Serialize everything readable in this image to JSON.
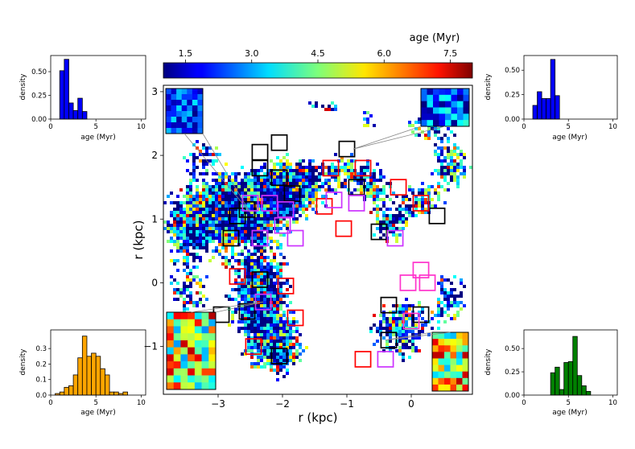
{
  "chart_data": {
    "type": "heatmap",
    "main": {
      "xlabel": "r (kpc)",
      "ylabel": "r (kpc)",
      "xlim": [
        -3.85,
        0.95
      ],
      "ylim": [
        -1.75,
        3.1
      ],
      "xticks": [
        -3,
        -2,
        -1,
        0
      ],
      "yticks": [
        -1,
        0,
        1,
        2,
        3
      ],
      "x_tick_labels": [
        "−3",
        "−2",
        "−1",
        "0"
      ],
      "y_tick_labels": [
        "−1",
        "0",
        "1",
        "2",
        "3"
      ],
      "colorbar": {
        "label": "age (Myr)",
        "range": [
          1.0,
          8.0
        ],
        "ticks": [
          1.5,
          3.0,
          4.5,
          6.0,
          7.5
        ],
        "tick_labels": [
          "1.5",
          "3.0",
          "4.5",
          "6.0",
          "7.5"
        ],
        "colormap": "jet"
      },
      "regions": [
        {
          "color": "#000000",
          "x": -2.35,
          "y": 2.05
        },
        {
          "color": "#000000",
          "x": -2.05,
          "y": 2.2
        },
        {
          "color": "#000000",
          "x": -2.35,
          "y": 1.8
        },
        {
          "color": "#000000",
          "x": -2.05,
          "y": 1.65
        },
        {
          "color": "#000000",
          "x": -1.85,
          "y": 1.4
        },
        {
          "color": "#000000",
          "x": -1.0,
          "y": 2.1
        },
        {
          "color": "#000000",
          "x": -0.85,
          "y": 1.5
        },
        {
          "color": "#000000",
          "x": 0.4,
          "y": 1.05
        },
        {
          "color": "#000000",
          "x": -2.55,
          "y": 1.15
        },
        {
          "color": "#000000",
          "x": -2.7,
          "y": 1.05
        },
        {
          "color": "#000000",
          "x": -2.8,
          "y": 0.7
        },
        {
          "color": "#000000",
          "x": -0.5,
          "y": 0.8
        },
        {
          "color": "#000000",
          "x": -2.35,
          "y": 0.05
        },
        {
          "color": "#000000",
          "x": -2.55,
          "y": -0.45
        },
        {
          "color": "#000000",
          "x": -2.95,
          "y": -0.5
        },
        {
          "color": "#000000",
          "x": -0.35,
          "y": -0.35
        },
        {
          "color": "#000000",
          "x": 0.15,
          "y": -0.5
        },
        {
          "color": "#000000",
          "x": -0.35,
          "y": -0.9
        },
        {
          "color": "#000000",
          "x": -2.05,
          "y": -1.15
        },
        {
          "color": "#ff0000",
          "x": -1.25,
          "y": 1.8
        },
        {
          "color": "#ff0000",
          "x": -0.75,
          "y": 1.8
        },
        {
          "color": "#ff0000",
          "x": -0.2,
          "y": 1.5
        },
        {
          "color": "#ff0000",
          "x": 0.15,
          "y": 1.25
        },
        {
          "color": "#ff0000",
          "x": -1.35,
          "y": 1.2
        },
        {
          "color": "#ff0000",
          "x": -1.05,
          "y": 0.85
        },
        {
          "color": "#ff0000",
          "x": -2.7,
          "y": 0.1
        },
        {
          "color": "#ff0000",
          "x": -1.95,
          "y": -0.05
        },
        {
          "color": "#ff0000",
          "x": -1.8,
          "y": -0.55
        },
        {
          "color": "#ff0000",
          "x": -2.45,
          "y": -1.0
        },
        {
          "color": "#ff0000",
          "x": -0.75,
          "y": -1.2
        },
        {
          "color": "#cc33ff",
          "x": -2.5,
          "y": 1.25
        },
        {
          "color": "#cc33ff",
          "x": -2.2,
          "y": 1.25
        },
        {
          "color": "#cc33ff",
          "x": -1.95,
          "y": 1.15
        },
        {
          "color": "#cc33ff",
          "x": -2.0,
          "y": 0.9
        },
        {
          "color": "#cc33ff",
          "x": -2.35,
          "y": 0.7
        },
        {
          "color": "#cc33ff",
          "x": -1.8,
          "y": 0.7
        },
        {
          "color": "#cc33ff",
          "x": -1.2,
          "y": 1.3
        },
        {
          "color": "#cc33ff",
          "x": -0.85,
          "y": 1.25
        },
        {
          "color": "#cc33ff",
          "x": -0.25,
          "y": 0.7
        },
        {
          "color": "#cc33ff",
          "x": -2.3,
          "y": -0.3
        },
        {
          "color": "#cc33ff",
          "x": -0.4,
          "y": -1.2
        },
        {
          "color": "#ff33cc",
          "x": 0.15,
          "y": 0.2
        },
        {
          "color": "#ff33cc",
          "x": 0.25,
          "y": 0.0
        },
        {
          "color": "#ff33cc",
          "x": -0.05,
          "y": 0.0
        },
        {
          "color": "#ff33cc",
          "x": 0.0,
          "y": -0.6
        }
      ]
    },
    "histograms": [
      {
        "position": "top-left",
        "color": "#0000ff",
        "xlabel": "age (Myr)",
        "ylabel": "density",
        "xlim": [
          0,
          10.5
        ],
        "ylim": [
          0,
          0.67
        ],
        "xticks": [
          0,
          5,
          10
        ],
        "yticks": [
          0.0,
          0.25,
          0.5
        ],
        "ytick_labels": [
          "0.00",
          "0.25",
          "0.50"
        ],
        "bin_edges": [
          1.0,
          1.5,
          2.0,
          2.5,
          3.0,
          3.5,
          4.0
        ],
        "values": [
          0.51,
          0.63,
          0.17,
          0.09,
          0.22,
          0.08
        ]
      },
      {
        "position": "top-right",
        "color": "#0000ff",
        "xlabel": "age (Myr)",
        "ylabel": "density",
        "xlim": [
          0,
          10.5
        ],
        "ylim": [
          0,
          0.65
        ],
        "xticks": [
          0,
          5,
          10
        ],
        "yticks": [
          0.0,
          0.25,
          0.5
        ],
        "ytick_labels": [
          "0.00",
          "0.25",
          "0.50"
        ],
        "bin_edges": [
          1.0,
          1.5,
          2.0,
          2.5,
          3.0,
          3.5,
          4.0
        ],
        "values": [
          0.14,
          0.28,
          0.21,
          0.21,
          0.61,
          0.24
        ]
      },
      {
        "position": "bottom-left",
        "color": "#ffa500",
        "xlabel": "age (Myr)",
        "ylabel": "density",
        "xlim": [
          0,
          10.5
        ],
        "ylim": [
          0,
          0.42
        ],
        "xticks": [
          0,
          5,
          10
        ],
        "yticks": [
          0.0,
          0.1,
          0.2,
          0.3
        ],
        "ytick_labels": [
          "0.0",
          "0.1",
          "0.2",
          "0.3"
        ],
        "bin_edges": [
          0.5,
          1.0,
          1.5,
          2.0,
          2.5,
          3.0,
          3.5,
          4.0,
          4.5,
          5.0,
          5.5,
          6.0,
          6.5,
          7.0,
          7.5,
          8.0,
          8.5
        ],
        "values": [
          0.01,
          0.02,
          0.05,
          0.06,
          0.13,
          0.24,
          0.38,
          0.25,
          0.27,
          0.25,
          0.17,
          0.13,
          0.02,
          0.02,
          0.01,
          0.02
        ]
      },
      {
        "position": "bottom-right",
        "color": "#008000",
        "xlabel": "age (Myr)",
        "ylabel": "density",
        "xlim": [
          0,
          10.5
        ],
        "ylim": [
          0,
          0.7
        ],
        "xticks": [
          0,
          5,
          10
        ],
        "yticks": [
          0.0,
          0.25,
          0.5
        ],
        "ytick_labels": [
          "0.00",
          "0.25",
          "0.50"
        ],
        "bin_edges": [
          3.0,
          3.5,
          4.0,
          4.5,
          5.0,
          5.5,
          6.0,
          6.5,
          7.0,
          7.5
        ],
        "values": [
          0.24,
          0.3,
          0.06,
          0.35,
          0.36,
          0.63,
          0.21,
          0.1,
          0.04
        ]
      }
    ]
  }
}
